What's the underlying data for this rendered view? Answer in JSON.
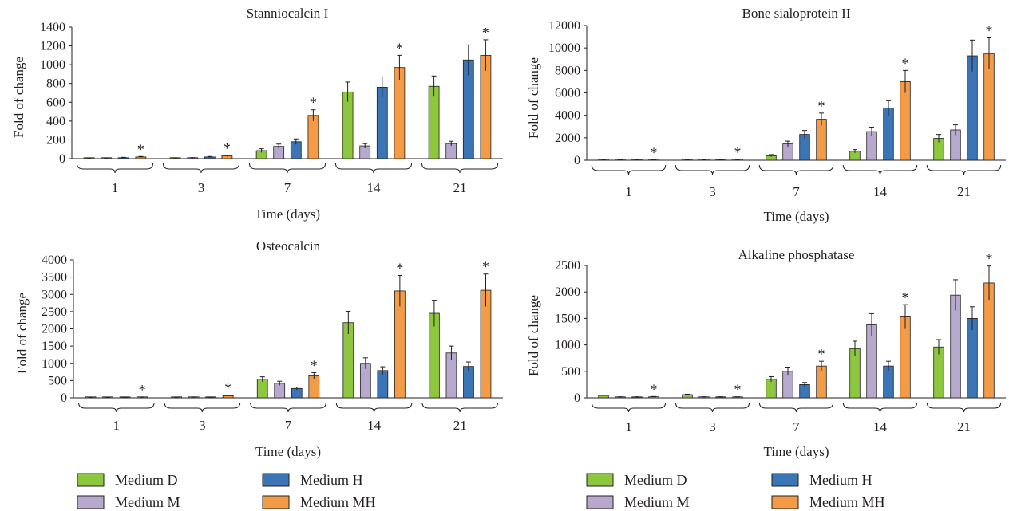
{
  "legend": {
    "items": [
      {
        "label": "Medium D",
        "color": "#8dc63f"
      },
      {
        "label": "Medium H",
        "color": "#3b75b5"
      },
      {
        "label": "Medium M",
        "color": "#b7a9cd"
      },
      {
        "label": "Medium MH",
        "color": "#f39b46"
      }
    ]
  },
  "chart_data": [
    {
      "type": "bar",
      "title": "Stanniocalcin I",
      "xlabel": "Time (days)",
      "ylabel": "Fold of change",
      "categories": [
        "1",
        "3",
        "7",
        "14",
        "21"
      ],
      "ylim": [
        0,
        1400
      ],
      "yticks": [
        "0",
        "200",
        "400",
        "600",
        "800",
        "1000",
        "1200",
        "1400"
      ],
      "series": [
        {
          "name": "Medium D",
          "color": "#8dc63f",
          "values": [
            5,
            6,
            85,
            710,
            770
          ],
          "errors": [
            3,
            3,
            20,
            105,
            110
          ]
        },
        {
          "name": "Medium M",
          "color": "#b7a9cd",
          "values": [
            6,
            8,
            130,
            135,
            160
          ],
          "errors": [
            3,
            3,
            25,
            25,
            25
          ]
        },
        {
          "name": "Medium H",
          "color": "#3b75b5",
          "values": [
            10,
            18,
            180,
            760,
            1050
          ],
          "errors": [
            4,
            5,
            30,
            110,
            160
          ]
        },
        {
          "name": "Medium MH",
          "color": "#f39b46",
          "values": [
            18,
            30,
            460,
            970,
            1100
          ],
          "errors": [
            5,
            6,
            60,
            130,
            165
          ]
        }
      ],
      "significance": [
        "*",
        "*",
        "*",
        "*",
        "*"
      ]
    },
    {
      "type": "bar",
      "title": "Bone sialoprotein II",
      "xlabel": "Time (days)",
      "ylabel": "Fold of change",
      "categories": [
        "1",
        "3",
        "7",
        "14",
        "21"
      ],
      "ylim": [
        0,
        12000
      ],
      "yticks": [
        "0",
        "2000",
        "4000",
        "6000",
        "8000",
        "10000",
        "12000"
      ],
      "series": [
        {
          "name": "Medium D",
          "color": "#8dc63f",
          "values": [
            20,
            20,
            400,
            800,
            1950
          ],
          "errors": [
            10,
            10,
            100,
            150,
            350
          ]
        },
        {
          "name": "Medium M",
          "color": "#b7a9cd",
          "values": [
            25,
            25,
            1450,
            2550,
            2700
          ],
          "errors": [
            10,
            10,
            250,
            400,
            450
          ]
        },
        {
          "name": "Medium H",
          "color": "#3b75b5",
          "values": [
            30,
            30,
            2300,
            4650,
            9300
          ],
          "errors": [
            10,
            10,
            350,
            650,
            1400
          ]
        },
        {
          "name": "Medium MH",
          "color": "#f39b46",
          "values": [
            40,
            50,
            3650,
            7000,
            9500
          ],
          "errors": [
            10,
            15,
            550,
            1000,
            1400
          ]
        }
      ],
      "significance": [
        "*",
        "*",
        "*",
        "*",
        "*"
      ]
    },
    {
      "type": "bar",
      "title": "Osteocalcin",
      "xlabel": "Time (days)",
      "ylabel": "Fold of change",
      "categories": [
        "1",
        "3",
        "7",
        "14",
        "21"
      ],
      "ylim": [
        0,
        4000
      ],
      "yticks": [
        "0",
        "500",
        "1000",
        "1500",
        "2000",
        "2500",
        "3000",
        "3500",
        "4000"
      ],
      "series": [
        {
          "name": "Medium D",
          "color": "#8dc63f",
          "values": [
            10,
            15,
            540,
            2180,
            2450
          ],
          "errors": [
            5,
            5,
            70,
            330,
            380
          ]
        },
        {
          "name": "Medium M",
          "color": "#b7a9cd",
          "values": [
            15,
            20,
            420,
            1000,
            1300
          ],
          "errors": [
            5,
            5,
            60,
            160,
            200
          ]
        },
        {
          "name": "Medium H",
          "color": "#3b75b5",
          "values": [
            10,
            15,
            270,
            790,
            910
          ],
          "errors": [
            5,
            5,
            40,
            110,
            130
          ]
        },
        {
          "name": "Medium MH",
          "color": "#f39b46",
          "values": [
            20,
            60,
            640,
            3100,
            3120
          ],
          "errors": [
            5,
            10,
            90,
            450,
            470
          ]
        }
      ],
      "significance": [
        "*",
        "*",
        "*",
        "*",
        "*"
      ]
    },
    {
      "type": "bar",
      "title": "Alkaline phosphatase",
      "xlabel": "Time (days)",
      "ylabel": "Fold of change",
      "categories": [
        "1",
        "3",
        "7",
        "14",
        "21"
      ],
      "ylim": [
        0,
        2500
      ],
      "yticks": [
        "0",
        "500",
        "1000",
        "1500",
        "2000",
        "2500"
      ],
      "series": [
        {
          "name": "Medium D",
          "color": "#8dc63f",
          "values": [
            45,
            60,
            350,
            930,
            960
          ],
          "errors": [
            8,
            8,
            50,
            140,
            140
          ]
        },
        {
          "name": "Medium M",
          "color": "#b7a9cd",
          "values": [
            15,
            15,
            500,
            1380,
            1940
          ],
          "errors": [
            5,
            5,
            80,
            210,
            290
          ]
        },
        {
          "name": "Medium H",
          "color": "#3b75b5",
          "values": [
            15,
            15,
            250,
            600,
            1500
          ],
          "errors": [
            5,
            5,
            40,
            90,
            220
          ]
        },
        {
          "name": "Medium MH",
          "color": "#f39b46",
          "values": [
            20,
            15,
            600,
            1530,
            2170
          ],
          "errors": [
            5,
            5,
            90,
            230,
            320
          ]
        }
      ],
      "significance": [
        "*",
        "*",
        "*",
        "*",
        "*"
      ]
    }
  ]
}
